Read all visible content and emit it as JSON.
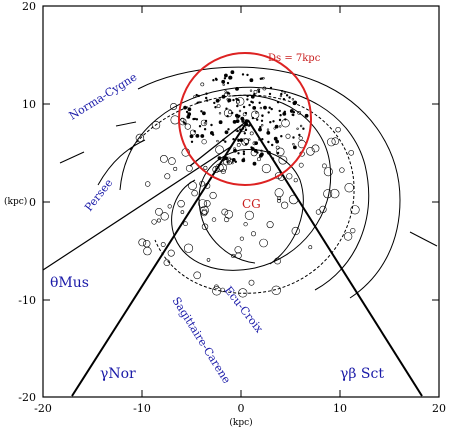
{
  "axes": {
    "x_ticks": [
      "-20",
      "-10",
      "0",
      "10",
      "20"
    ],
    "y_ticks": [
      "20",
      "10",
      "0",
      "-10",
      "-20"
    ],
    "x_label": "(kpc)",
    "y_label": "(kpc)",
    "x_range": [
      -20,
      20
    ],
    "y_range": [
      -20,
      20
    ]
  },
  "labels": {
    "circle_label": "Ds = 7kpc",
    "center_label": "CG",
    "arm_norma_cygne": "Norma-Cygne",
    "arm_persee": "Persee",
    "arm_ecu_croix": "Ecu-Croix",
    "arm_sagittaire": "Sagittaire-Carene",
    "dir_theta_mus": "θMus",
    "dir_gamma_nor": "γNor",
    "dir_gamma_beta_sct": "γβ Sct"
  },
  "colors": {
    "circle": "#dd2222",
    "arm_text": "#1a1aa8",
    "red_text": "#c81e1e"
  }
}
